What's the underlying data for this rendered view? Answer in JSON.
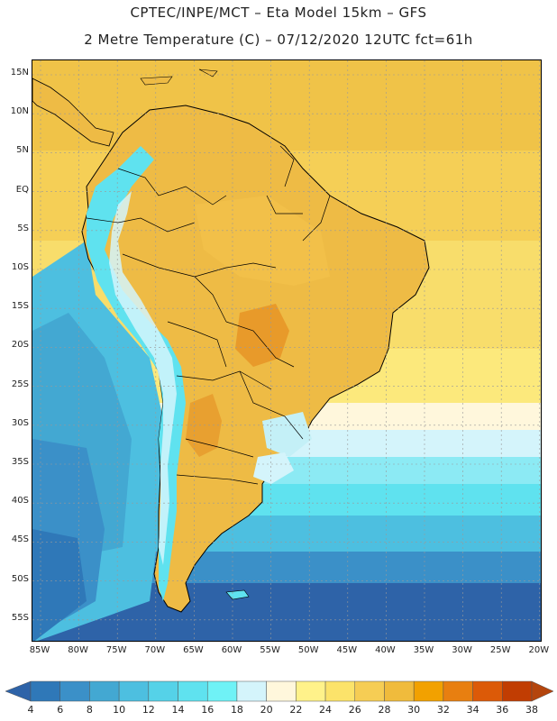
{
  "header": {
    "line1": "CPTEC/INPE/MCT  –  Eta Model 15km  –  GFS",
    "line2": "2 Metre Temperature (C) – 07/12/2020 12UTC fct=61h"
  },
  "map": {
    "lat_ticks": [
      "15N",
      "10N",
      "5N",
      "EQ",
      "5S",
      "10S",
      "15S",
      "20S",
      "25S",
      "30S",
      "35S",
      "40S",
      "45S",
      "50S",
      "55S"
    ],
    "lon_ticks": [
      "85W",
      "80W",
      "75W",
      "70W",
      "65W",
      "60W",
      "55W",
      "50W",
      "45W",
      "40W",
      "35W",
      "30W",
      "25W",
      "20W"
    ],
    "ocean_color": "#f4cf55",
    "land_color": "#eebb45",
    "country_border_color": "#000000"
  },
  "colorbar": {
    "labels": [
      "4",
      "6",
      "8",
      "10",
      "12",
      "14",
      "16",
      "18",
      "20",
      "22",
      "24",
      "26",
      "28",
      "30",
      "32",
      "34",
      "36",
      "38"
    ],
    "colors": [
      "#2e63a8",
      "#2f78b8",
      "#3b90c8",
      "#43a8d2",
      "#4dbfe0",
      "#55d2e8",
      "#5fe2ef",
      "#6ff2f6",
      "#d4f4fb",
      "#fff7dc",
      "#fff28a",
      "#fce36a",
      "#f6cd54",
      "#f0bb3c",
      "#f2a100",
      "#e87f10",
      "#dc5a08",
      "#c13d02",
      "#b4450d"
    ]
  }
}
